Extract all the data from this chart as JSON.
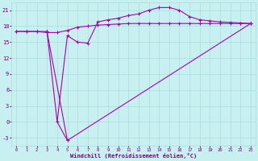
{
  "background_color": "#c8f0f0",
  "grid_color": "#aadddd",
  "line_color": "#aa00aa",
  "xlabel": "Windchill (Refroidissement éolien,°C)",
  "xlim": [
    -0.5,
    23.5
  ],
  "ylim": [
    -4.5,
    22.5
  ],
  "yticks": [
    -3,
    0,
    3,
    6,
    9,
    12,
    15,
    18,
    21
  ],
  "xtick_labels": [
    "0",
    "1",
    "2",
    "3",
    "4",
    "5",
    "6",
    "7",
    "8",
    "9",
    "10",
    "11",
    "12",
    "13",
    "14",
    "15",
    "16",
    "17",
    "18",
    "19",
    "20",
    "21",
    "22",
    "23"
  ],
  "xtick_vals": [
    0,
    1,
    2,
    3,
    4,
    5,
    6,
    7,
    8,
    9,
    10,
    11,
    12,
    13,
    14,
    15,
    16,
    17,
    18,
    19,
    20,
    21,
    22,
    23
  ],
  "line1_x": [
    0,
    1,
    2,
    3,
    4,
    5,
    6,
    7,
    8,
    9,
    10,
    11,
    12,
    13,
    14,
    15,
    16,
    17,
    18,
    19,
    20,
    21,
    22,
    23
  ],
  "line1_y": [
    17.0,
    17.0,
    17.0,
    16.8,
    16.8,
    17.2,
    17.8,
    18.0,
    18.2,
    18.3,
    18.4,
    18.5,
    18.5,
    18.5,
    18.5,
    18.5,
    18.5,
    18.5,
    18.5,
    18.5,
    18.5,
    18.5,
    18.5,
    18.5
  ],
  "line2_x": [
    0,
    1,
    2,
    3,
    4,
    5,
    6,
    7,
    8,
    9,
    10,
    11,
    12,
    13,
    14,
    15,
    16,
    17,
    18,
    19,
    20,
    21,
    22,
    23
  ],
  "line2_y": [
    17.0,
    17.0,
    17.0,
    17.0,
    0.0,
    16.2,
    15.0,
    14.8,
    18.8,
    19.2,
    19.5,
    20.0,
    20.3,
    21.0,
    21.5,
    21.5,
    21.0,
    19.8,
    19.2,
    19.0,
    18.8,
    18.7,
    18.6,
    18.5
  ],
  "line3_x": [
    3,
    5,
    23
  ],
  "line3_y": [
    17.0,
    -3.5,
    18.5
  ],
  "line4_x": [
    4,
    5
  ],
  "line4_y": [
    0.0,
    -3.5
  ]
}
